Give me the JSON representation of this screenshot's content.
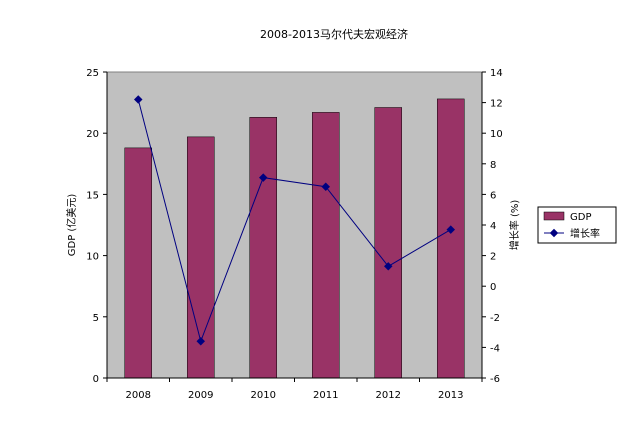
{
  "chart_data": {
    "type": "bar",
    "title": "2008-2013马尔代夫宏观经济",
    "categories": [
      "2008",
      "2009",
      "2010",
      "2011",
      "2012",
      "2013"
    ],
    "series": [
      {
        "name": "GDP",
        "type": "bar",
        "axis": "left",
        "values": [
          18.8,
          19.7,
          21.3,
          21.7,
          22.1,
          22.8
        ]
      },
      {
        "name": "增长率",
        "type": "line",
        "axis": "right",
        "values": [
          12.2,
          -3.6,
          7.1,
          6.5,
          1.3,
          3.7
        ]
      }
    ],
    "ylabel": "GDP (亿美元)",
    "y2label": "增长率 (%)",
    "ylim": [
      0,
      25
    ],
    "y2lim": [
      -6,
      14
    ],
    "yticks": [
      "0",
      "5",
      "10",
      "15",
      "20",
      "25"
    ],
    "y2ticks": [
      "-6",
      "-4",
      "-2",
      "0",
      "2",
      "4",
      "6",
      "8",
      "10",
      "12",
      "14"
    ],
    "grid": false,
    "legend_position": "right",
    "colors": {
      "bar": "#993366",
      "line": "#000080",
      "plot_bg": "#c0c0c0"
    }
  }
}
